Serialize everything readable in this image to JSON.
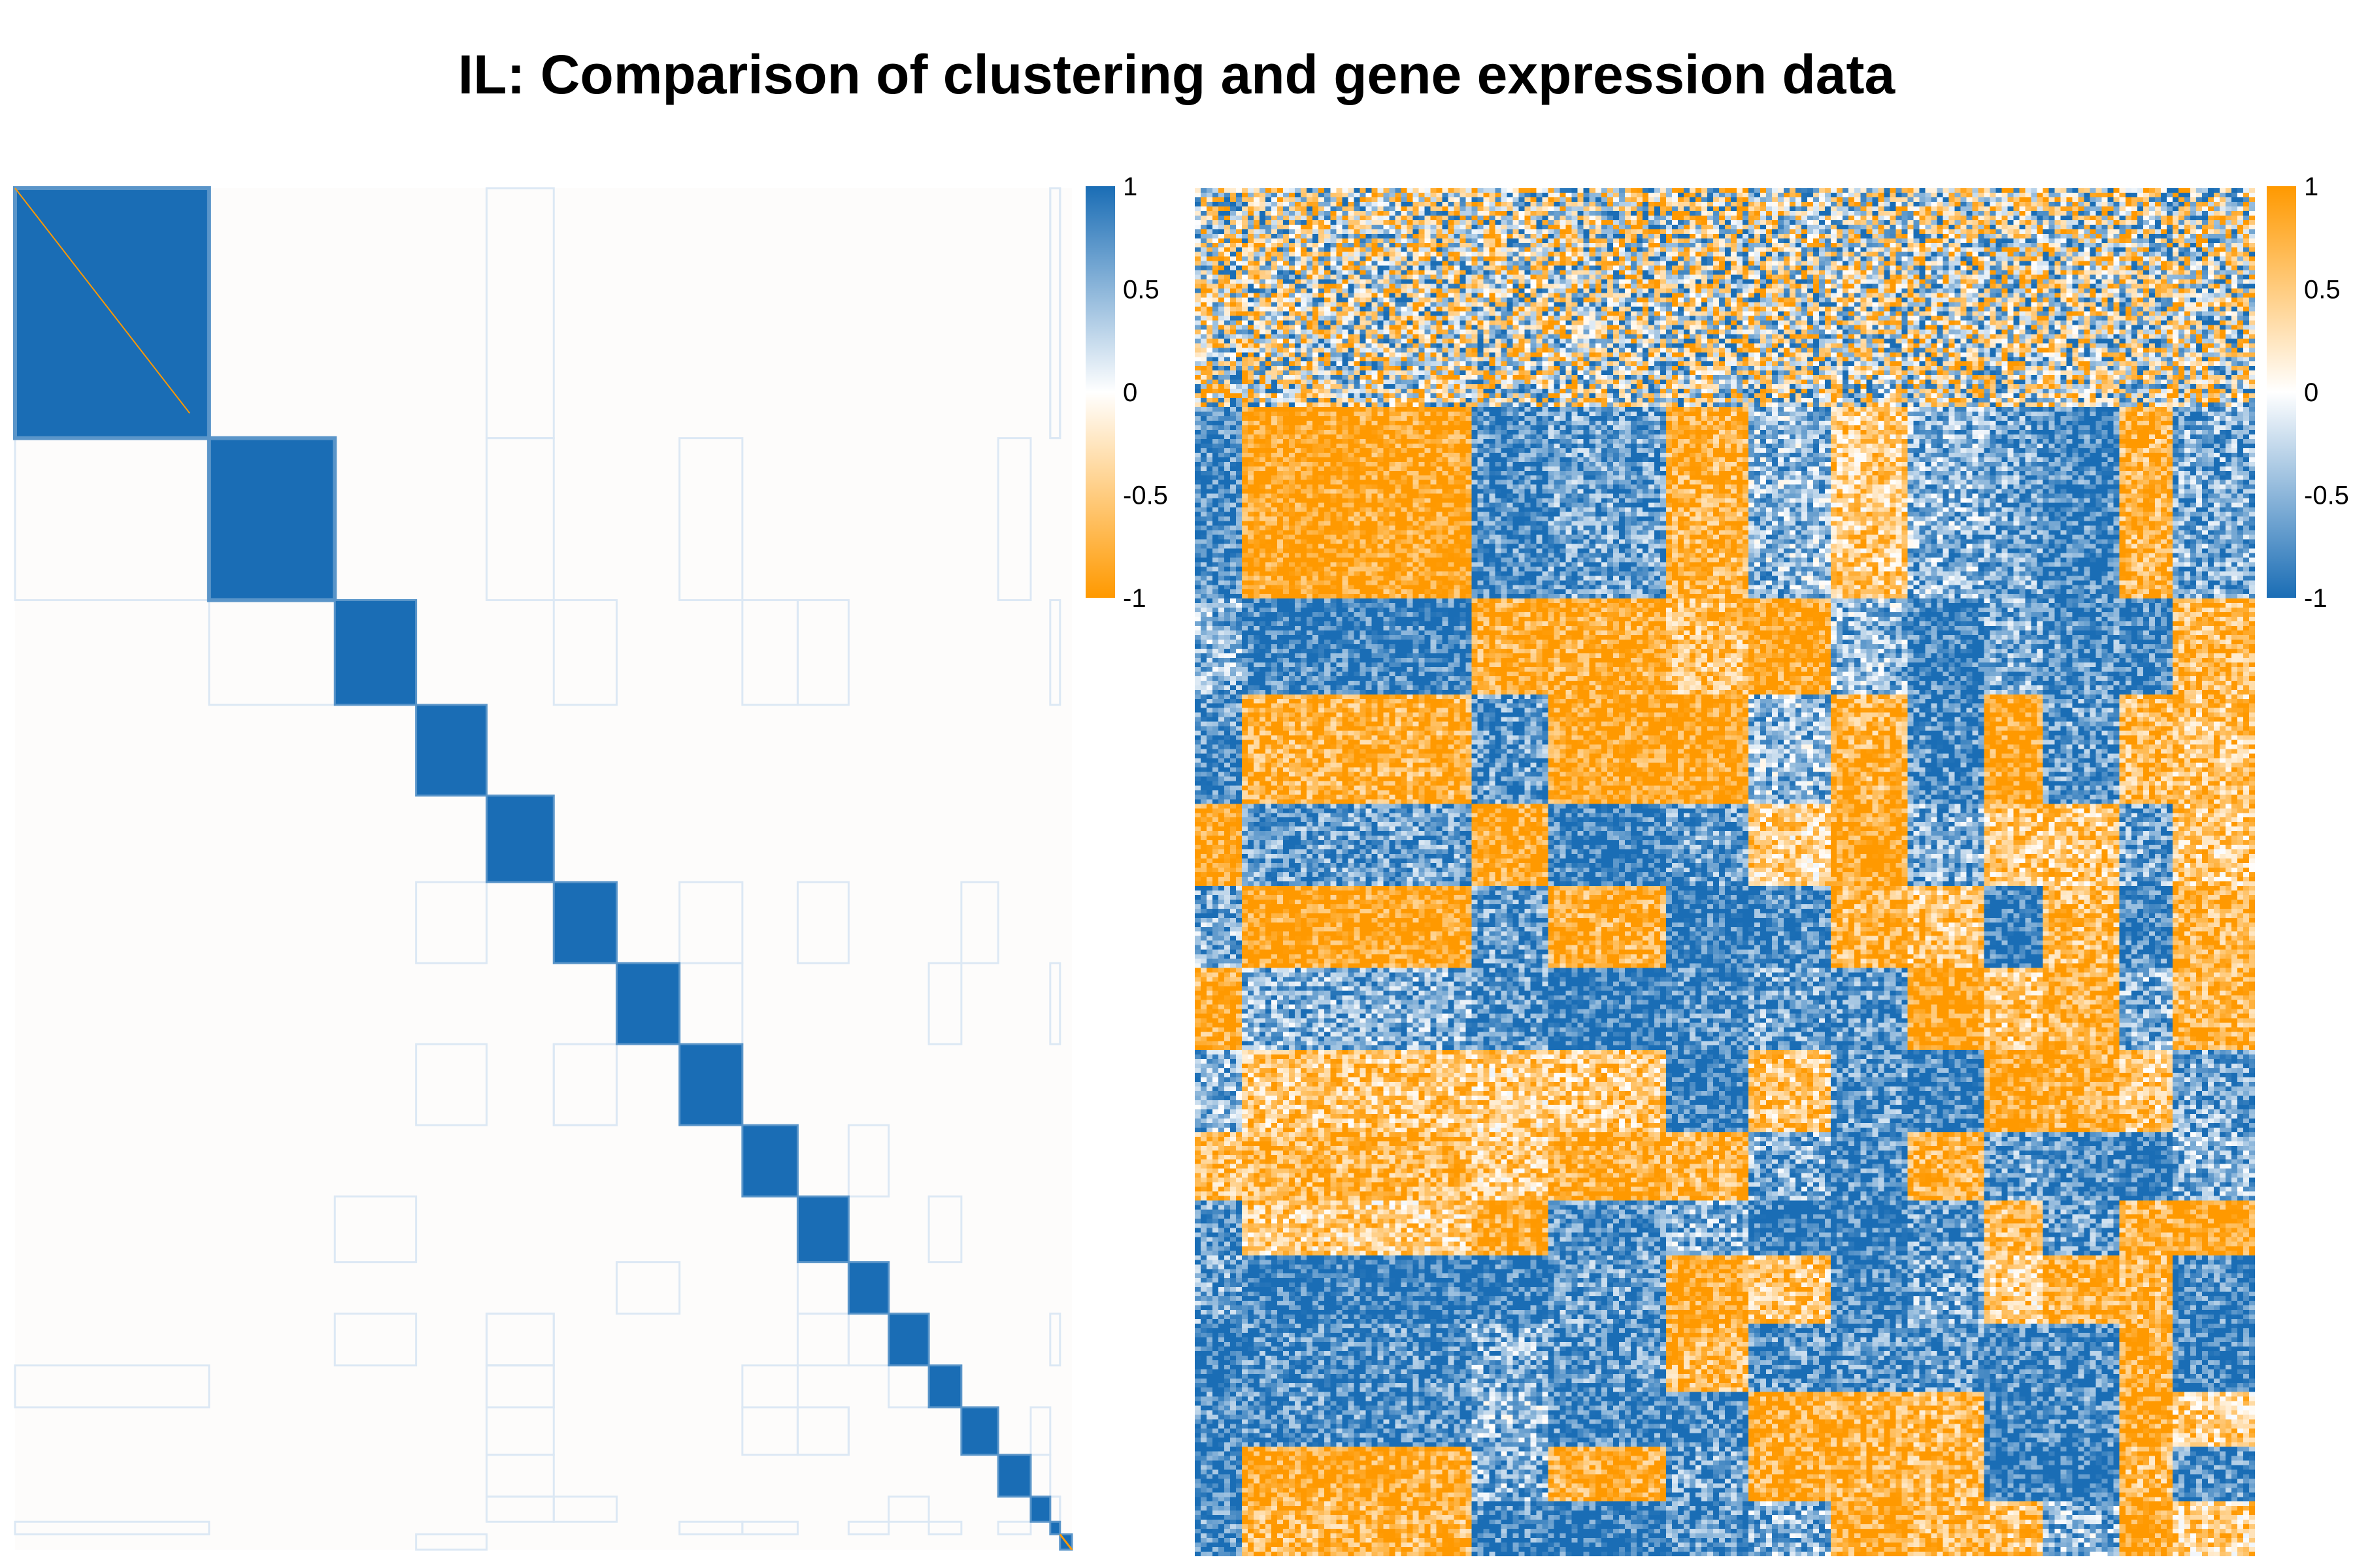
{
  "title": "IL: Comparison of clustering and gene expression data",
  "colors": {
    "blue": "#1a6db5",
    "white": "#ffffff",
    "orange": "#ff9900",
    "bg": "#fdfcfb"
  },
  "chart_data": [
    {
      "type": "heatmap",
      "name": "",
      "description_visible": "co-clustering similarity matrix, block diagonal",
      "value_range": [
        -1,
        1
      ],
      "colorscale": [
        [
          -1,
          "#ff9900"
        ],
        [
          0,
          "#ffffff"
        ],
        [
          1,
          "#1a6db5"
        ]
      ],
      "cluster_size_fractions": [
        0.179,
        0.116,
        0.075,
        0.065,
        0.062,
        0.058,
        0.058,
        0.058,
        0.051,
        0.047,
        0.037,
        0.037,
        0.03,
        0.034,
        0.03,
        0.018,
        0.009,
        0.011
      ],
      "within_cluster_value": 0.95,
      "between_cluster_value": 0.0,
      "colorbar": {
        "ticks": [
          "1",
          "0.5",
          "0",
          "-0.5",
          "-1"
        ]
      }
    },
    {
      "type": "heatmap",
      "name": "",
      "description_visible": "gene expression matrix ordered by clusters",
      "value_range": [
        -1,
        1
      ],
      "colorscale": [
        [
          -1,
          "#1a6db5"
        ],
        [
          0,
          "#ffffff"
        ],
        [
          1,
          "#ff9900"
        ]
      ],
      "colorbar": {
        "ticks": [
          "1",
          "0.5",
          "0",
          "-0.5",
          "-1"
        ]
      }
    }
  ]
}
